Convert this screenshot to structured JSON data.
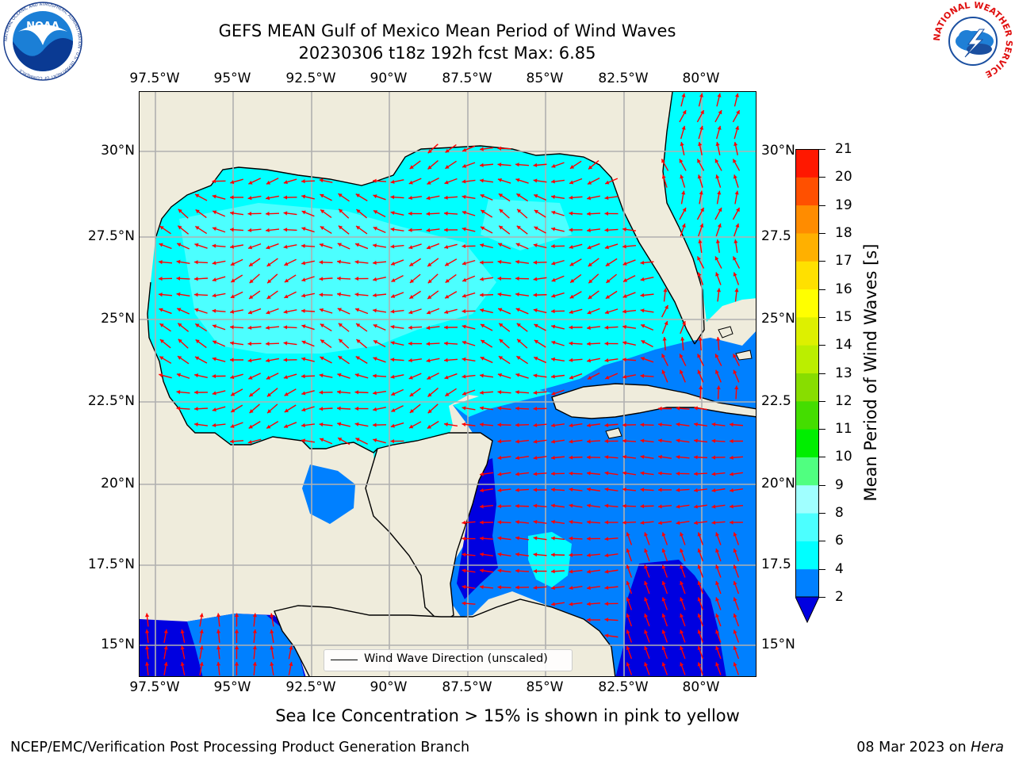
{
  "title": {
    "line1": "GEFS MEAN Gulf of Mexico Mean Period of Wind Waves",
    "line2": "20230306 t18z 192h fcst   Max: 6.85"
  },
  "map": {
    "lon_ticks": [
      "97.5°W",
      "95°W",
      "92.5°W",
      "90°W",
      "87.5°W",
      "85°W",
      "82.5°W",
      "80°W"
    ],
    "lat_ticks_left": [
      "30°N",
      "27.5°N",
      "25°N",
      "22.5°N",
      "20°N",
      "17.5°N",
      "15°N"
    ],
    "lat_ticks_right": [
      "30°N",
      "27.5",
      "25°N",
      "22.5",
      "20°N",
      "17.5",
      "15°N"
    ],
    "lon_range": [
      -98,
      -78.25
    ],
    "lat_range": [
      14,
      31.75
    ],
    "legend_label": "Wind Wave Direction (unscaled)",
    "colors": {
      "land": "#efecdc",
      "shallow_2_4": "#0080ff",
      "deep_below_2": "#0000e0",
      "band_4_6": "#00ffff",
      "band_6_8": "#4cffff",
      "arrow": "#ff0000",
      "grid": "#b0b0b0"
    }
  },
  "colorbar": {
    "label": "Mean Period of Wind Waves [s]",
    "ticks": [
      "2",
      "4",
      "6",
      "8",
      "9",
      "10",
      "11",
      "12",
      "13",
      "14",
      "15",
      "16",
      "17",
      "18",
      "19",
      "20",
      "21"
    ],
    "colors": [
      "#0080ff",
      "#00ffff",
      "#4cffff",
      "#a0ffff",
      "#50ff80",
      "#00ee00",
      "#44dd00",
      "#88dd00",
      "#bbee00",
      "#ddf000",
      "#ffff00",
      "#ffe000",
      "#ffb000",
      "#ff8c00",
      "#ff5000",
      "#ff1800",
      "#e60000"
    ],
    "extend_color": "#0000e0"
  },
  "footer": {
    "note": "Sea Ice Concentration > 15% is shown in pink to yellow",
    "credit": "NCEP/EMC/Verification Post Processing Product Generation Branch",
    "date_prefix": "08 Mar 2023 on ",
    "date_host": "Hera"
  },
  "logos": {
    "noaa_text": "NOAA",
    "noaa_ring": "NATIONAL OCEANIC AND ATMOSPHERIC ADMINISTRATION · U.S. DEPARTMENT OF COMMERCE",
    "nws_ring": "NATIONAL WEATHER SERVICE"
  }
}
